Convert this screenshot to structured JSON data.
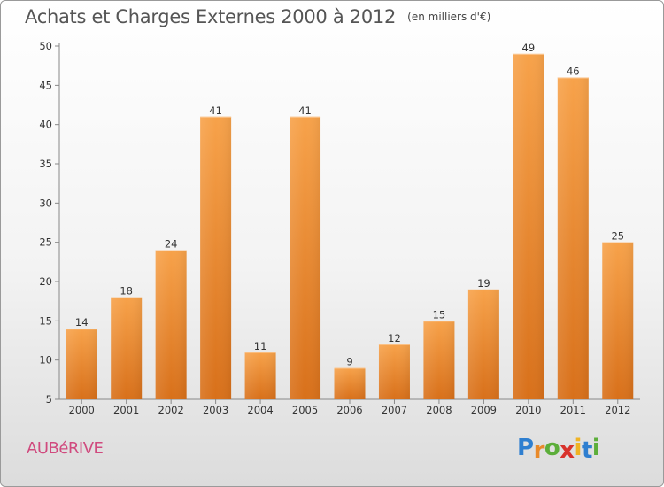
{
  "chart_data": {
    "type": "bar",
    "title": "Achats et Charges Externes 2000 à 2012",
    "unit": "(en milliers d'€)",
    "categories": [
      "2000",
      "2001",
      "2002",
      "2003",
      "2004",
      "2005",
      "2006",
      "2007",
      "2008",
      "2009",
      "2010",
      "2011",
      "2012"
    ],
    "values": [
      14,
      18,
      24,
      41,
      11,
      41,
      9,
      12,
      15,
      19,
      49,
      46,
      25
    ],
    "ylim": [
      5,
      50
    ],
    "yticks": [
      5,
      10,
      15,
      20,
      25,
      30,
      35,
      40,
      45,
      50
    ],
    "grid": false,
    "bar_color": "#f08a2a"
  },
  "location_label": "AUBéRIVE",
  "logo": {
    "letters": [
      "P",
      "r",
      "o",
      "x",
      "i",
      "t",
      "i"
    ],
    "colors": [
      "#2f7fd0",
      "#e98a2a",
      "#5cae3a",
      "#d8322c",
      "#f0b323",
      "#2f7fd0",
      "#5cae3a"
    ]
  }
}
